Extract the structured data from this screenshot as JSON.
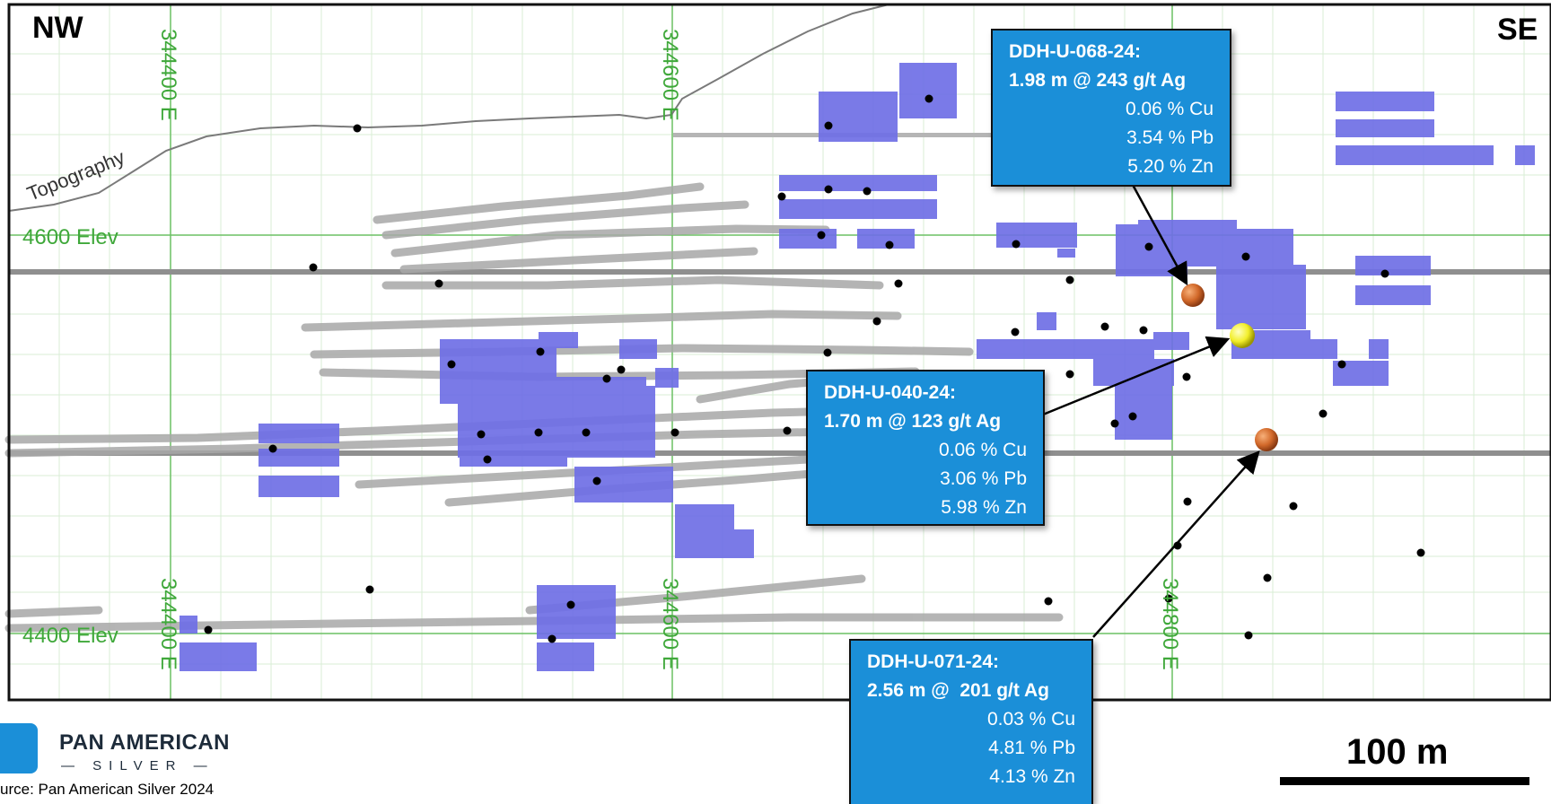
{
  "corners": {
    "left": "NW",
    "right": "SE"
  },
  "topography_label": "Topography",
  "elevations": [
    "4600 Elev",
    "4400 Elev"
  ],
  "eastings": [
    "344400 E",
    "344600 E",
    "344800 E"
  ],
  "callouts": [
    {
      "title": "DDH-U-068-24:",
      "headline": "1.98 m @ 243 g/t Ag",
      "cu": "0.06 % Cu",
      "pb": "3.54 % Pb",
      "zn": "5.20 % Zn",
      "ball_color": "#d2692a"
    },
    {
      "title": "DDH-U-040-24:",
      "headline": "1.70 m @ 123 g/t Ag",
      "cu": "0.06 % Cu",
      "pb": "3.06 % Pb",
      "zn": "5.98 % Zn",
      "ball_color": "#f2ee2a"
    },
    {
      "title": "DDH-U-071-24:",
      "headline": "2.56 m @  201 g/t Ag",
      "cu": "0.03 % Cu",
      "pb": "4.81 % Pb",
      "zn": "4.13 % Zn",
      "ball_color": "#d2692a"
    }
  ],
  "logo": {
    "name": "PAN AMERICAN",
    "sub": "— SILVER —",
    "source": "urce: Pan American Silver 2024"
  },
  "scale": "100 m",
  "colors": {
    "grid_major": "#5dbb55",
    "grid_minor": "#cfe8cc",
    "stope": "#6f6fe6",
    "drift": "#9a9a9a",
    "callout": "#1b8fd8"
  }
}
